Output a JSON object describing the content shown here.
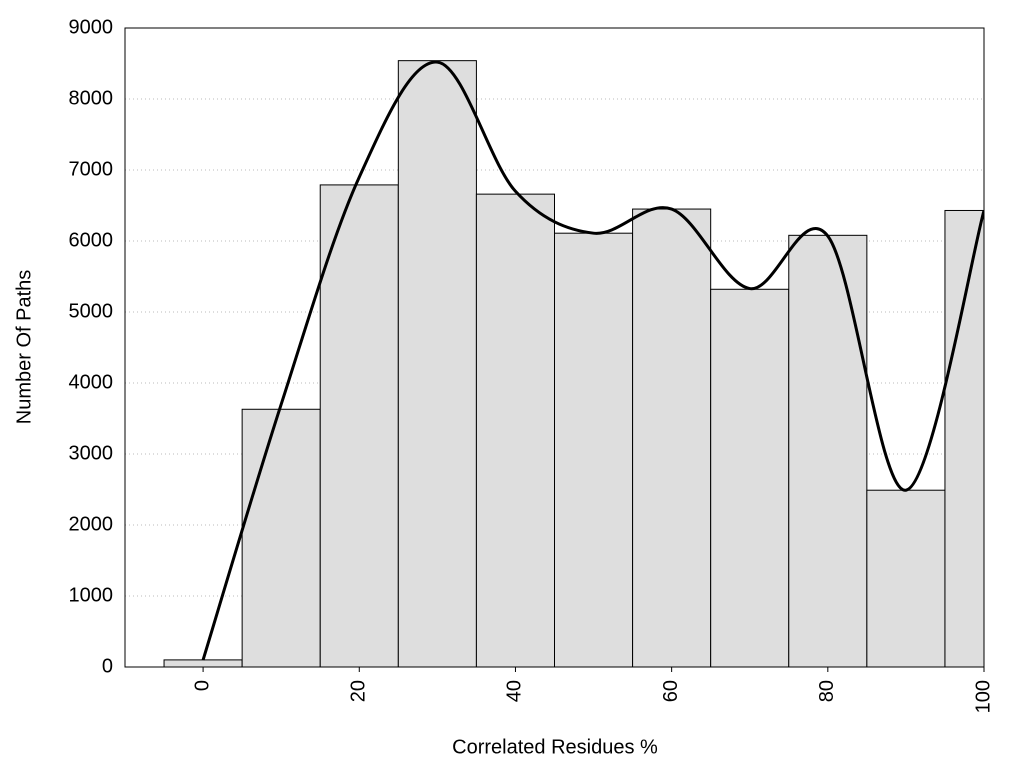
{
  "chart_data": {
    "type": "histogram",
    "x_label": "Correlated Residues %",
    "y_label": "Number Of Paths",
    "bins": [
      -5,
      5,
      15,
      25,
      35,
      45,
      55,
      65,
      75,
      85,
      95,
      105
    ],
    "values": [
      100,
      3630,
      6790,
      8540,
      6660,
      6110,
      6450,
      5320,
      6080,
      2490,
      6430
    ],
    "color": "#dedede",
    "curve": {
      "x": [
        0,
        10,
        20,
        30,
        40,
        50,
        60,
        70,
        80,
        90,
        100
      ],
      "values": [
        100,
        3700,
        6900,
        8520,
        6700,
        6110,
        6450,
        5330,
        6070,
        2490,
        6430
      ],
      "color": "#000000"
    },
    "xlim": [
      -10,
      100
    ],
    "ylim": [
      0,
      9000
    ],
    "xticks": [
      0,
      20,
      40,
      60,
      80,
      100
    ],
    "yticks": [
      0,
      1000,
      2000,
      3000,
      4000,
      5000,
      6000,
      7000,
      8000,
      9000
    ],
    "grid": true
  }
}
